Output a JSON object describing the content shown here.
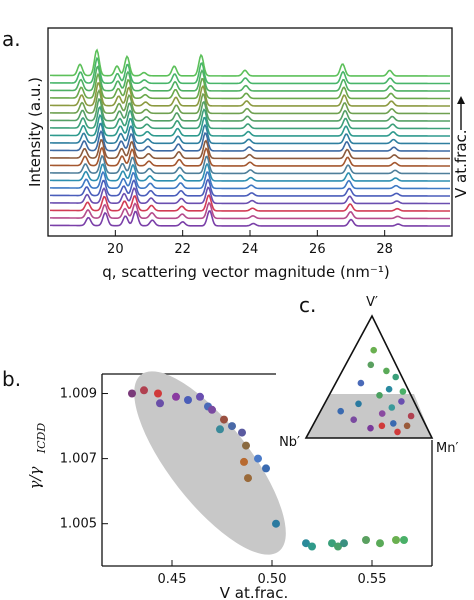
{
  "panels": {
    "a": "a.",
    "b": "b.",
    "c": "c."
  },
  "chart_data": [
    {
      "panel": "a",
      "type": "line",
      "xlabel": "q, scattering vector magnitude (nm⁻¹)",
      "ylabel": "Intensity (a.u.)",
      "side_label": "V at.frac.",
      "xticks": [
        "20",
        "22",
        "24",
        "26",
        "28"
      ],
      "xlim": [
        18.0,
        30.0
      ],
      "series_count": 21,
      "series_colors": [
        "#7a3fa8",
        "#b54c8c",
        "#d23c55",
        "#6a4fb0",
        "#4a5dbb",
        "#3e79c4",
        "#2e8fb0",
        "#4f7f9a",
        "#a4572f",
        "#8c5a3c",
        "#3d6aa3",
        "#2f7f9f",
        "#2e9a8e",
        "#3da07a",
        "#55a066",
        "#6fa050",
        "#8c9a40",
        "#6aa84b",
        "#4fb063",
        "#48b56a",
        "#5cc05a"
      ],
      "peaks_q": [
        19.2,
        19.7,
        20.3,
        20.6,
        21.1,
        22.0,
        22.8,
        24.0,
        26.9,
        28.3
      ],
      "peak_heights_low_V": [
        0.5,
        0.8,
        0.6,
        0.9,
        0.35,
        0.25,
        0.95,
        0.15,
        0.4,
        0.12
      ],
      "peak_heights_high_V": [
        0.7,
        1.6,
        0.6,
        1.2,
        0.2,
        0.6,
        1.3,
        0.35,
        0.75,
        0.35
      ]
    },
    {
      "panel": "b",
      "type": "scatter",
      "xlabel": "V at.frac.",
      "ylabel_main": "γ/γ",
      "ylabel_sub": "ICDD",
      "xticks": [
        "0.45",
        "0.50",
        "0.55"
      ],
      "yticks": [
        "1.005",
        "1.007",
        "1.009"
      ],
      "xlim": [
        0.415,
        0.58
      ],
      "ylim": [
        1.0037,
        1.0096
      ],
      "highlight_region": "gray ellipse along the descending trend",
      "points": [
        {
          "x": 0.43,
          "y": 1.009,
          "color": "#7a3a7a"
        },
        {
          "x": 0.436,
          "y": 1.0091,
          "color": "#b04050"
        },
        {
          "x": 0.443,
          "y": 1.009,
          "color": "#d03a3a"
        },
        {
          "x": 0.444,
          "y": 1.0087,
          "color": "#6a4fa8"
        },
        {
          "x": 0.452,
          "y": 1.0089,
          "color": "#8a3aa0"
        },
        {
          "x": 0.458,
          "y": 1.0088,
          "color": "#4a5db8"
        },
        {
          "x": 0.464,
          "y": 1.0089,
          "color": "#6a4fb0"
        },
        {
          "x": 0.468,
          "y": 1.0086,
          "color": "#4a6ab8"
        },
        {
          "x": 0.47,
          "y": 1.0085,
          "color": "#7a4aa0"
        },
        {
          "x": 0.476,
          "y": 1.0082,
          "color": "#9a5040"
        },
        {
          "x": 0.474,
          "y": 1.0079,
          "color": "#3a8a9a"
        },
        {
          "x": 0.48,
          "y": 1.008,
          "color": "#4a6aa8"
        },
        {
          "x": 0.485,
          "y": 1.0078,
          "color": "#5a5aa0"
        },
        {
          "x": 0.487,
          "y": 1.0074,
          "color": "#8a6a40"
        },
        {
          "x": 0.486,
          "y": 1.0069,
          "color": "#b86a30"
        },
        {
          "x": 0.488,
          "y": 1.0064,
          "color": "#9a6a3a"
        },
        {
          "x": 0.493,
          "y": 1.007,
          "color": "#4a7ac8"
        },
        {
          "x": 0.497,
          "y": 1.0067,
          "color": "#3a6ab0"
        },
        {
          "x": 0.502,
          "y": 1.005,
          "color": "#2a7aa0"
        },
        {
          "x": 0.517,
          "y": 1.0044,
          "color": "#2a8a9a"
        },
        {
          "x": 0.52,
          "y": 1.0043,
          "color": "#2f9a8a"
        },
        {
          "x": 0.53,
          "y": 1.0044,
          "color": "#3aa07a"
        },
        {
          "x": 0.533,
          "y": 1.0043,
          "color": "#4aa06a"
        },
        {
          "x": 0.536,
          "y": 1.0044,
          "color": "#3a9080"
        },
        {
          "x": 0.547,
          "y": 1.0045,
          "color": "#5aa060"
        },
        {
          "x": 0.554,
          "y": 1.0044,
          "color": "#5aaa58"
        },
        {
          "x": 0.562,
          "y": 1.0045,
          "color": "#6ab050"
        },
        {
          "x": 0.566,
          "y": 1.0045,
          "color": "#4ab068"
        }
      ]
    },
    {
      "panel": "c",
      "type": "scatter",
      "corner_labels": {
        "top": "V′",
        "left": "Nb′",
        "right": "Mn′"
      },
      "note": "ternary composition diagram, shaded lower band",
      "points": [
        {
          "a": 0.1,
          "b": 0.35,
          "c": 0.55,
          "color": "#d03a3a"
        },
        {
          "a": 0.08,
          "b": 0.45,
          "c": 0.47,
          "color": "#7a3a9a"
        },
        {
          "a": 0.12,
          "b": 0.25,
          "c": 0.63,
          "color": "#3a6ab0"
        },
        {
          "a": 0.2,
          "b": 0.3,
          "c": 0.5,
          "color": "#8a4aa0"
        },
        {
          "a": 0.25,
          "b": 0.2,
          "c": 0.55,
          "color": "#3a9a9a"
        },
        {
          "a": 0.35,
          "b": 0.25,
          "c": 0.4,
          "color": "#4aa060"
        },
        {
          "a": 0.4,
          "b": 0.15,
          "c": 0.45,
          "color": "#2a8aa0"
        },
        {
          "a": 0.3,
          "b": 0.1,
          "c": 0.6,
          "color": "#6a4fb0"
        },
        {
          "a": 0.18,
          "b": 0.08,
          "c": 0.74,
          "color": "#b04050"
        },
        {
          "a": 0.1,
          "b": 0.15,
          "c": 0.75,
          "color": "#9a5a3a"
        },
        {
          "a": 0.45,
          "b": 0.35,
          "c": 0.2,
          "color": "#4a6ab8"
        },
        {
          "a": 0.6,
          "b": 0.2,
          "c": 0.2,
          "color": "#5aa060"
        },
        {
          "a": 0.72,
          "b": 0.12,
          "c": 0.16,
          "color": "#6ab050"
        },
        {
          "a": 0.5,
          "b": 0.05,
          "c": 0.45,
          "color": "#3aa07a"
        },
        {
          "a": 0.15,
          "b": 0.55,
          "c": 0.3,
          "color": "#7a4aa0"
        },
        {
          "a": 0.28,
          "b": 0.45,
          "c": 0.27,
          "color": "#2a7aa0"
        },
        {
          "a": 0.05,
          "b": 0.25,
          "c": 0.7,
          "color": "#d03a3a"
        },
        {
          "a": 0.38,
          "b": 0.05,
          "c": 0.57,
          "color": "#4ab068"
        },
        {
          "a": 0.55,
          "b": 0.1,
          "c": 0.35,
          "color": "#5aaa58"
        },
        {
          "a": 0.22,
          "b": 0.62,
          "c": 0.16,
          "color": "#3a6ab0"
        }
      ]
    }
  ]
}
